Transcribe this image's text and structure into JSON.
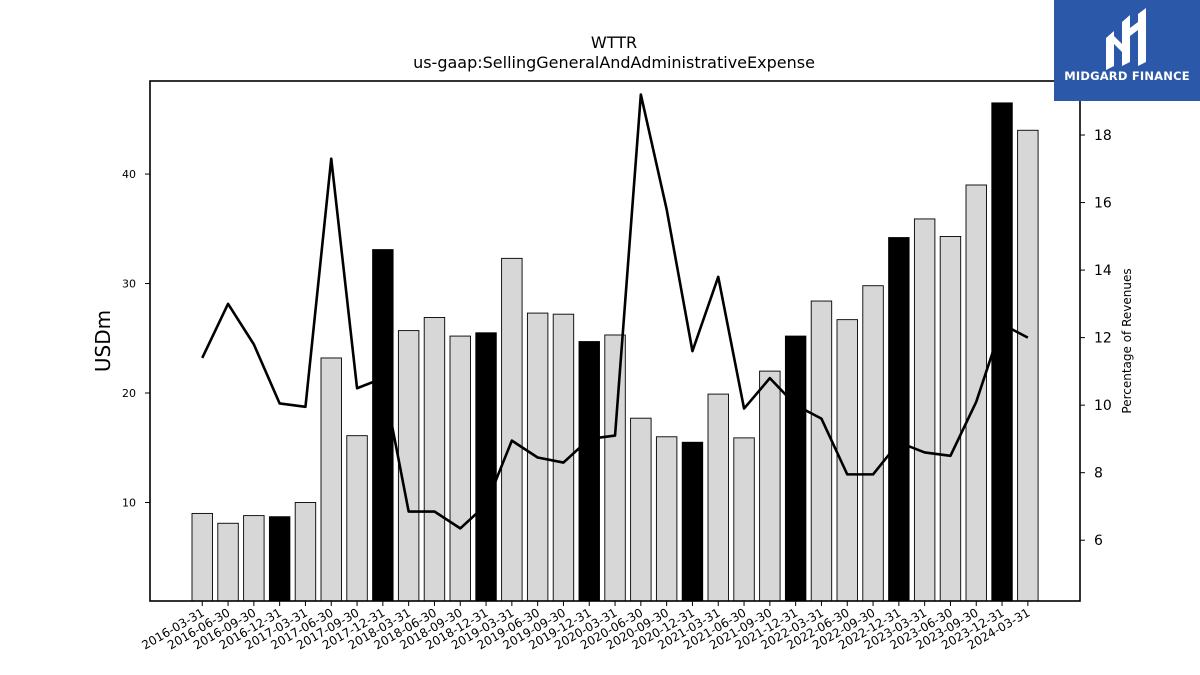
{
  "brand": {
    "name": "MIDGARD FINANCE",
    "bg_color": "#2b58a8",
    "icon": "midgard-logo-icon"
  },
  "chart_data": {
    "type": "bar+line",
    "title": "WTTR",
    "subtitle": "us-gaap:SellingGeneralAndAdministrativeExpense",
    "ylabel": "USDm",
    "y2label": "Percentage of Revenues",
    "ylim": [
      1,
      48.5
    ],
    "y2lim": [
      4.2,
      19.6
    ],
    "yticks": [
      10,
      20,
      30,
      40
    ],
    "y2ticks": [
      6,
      8,
      10,
      12,
      14,
      16,
      18
    ],
    "categories": [
      "2016-03-31",
      "2016-06-30",
      "2016-09-30",
      "2016-12-31",
      "2017-03-31",
      "2017-06-30",
      "2017-09-30",
      "2017-12-31",
      "2018-03-31",
      "2018-06-30",
      "2018-09-30",
      "2018-12-31",
      "2019-03-31",
      "2019-06-30",
      "2019-09-30",
      "2019-12-31",
      "2020-03-31",
      "2020-06-30",
      "2020-09-30",
      "2020-12-31",
      "2021-03-31",
      "2021-06-30",
      "2021-09-30",
      "2021-12-31",
      "2022-03-31",
      "2022-06-30",
      "2022-09-30",
      "2022-12-31",
      "2023-03-31",
      "2023-06-30",
      "2023-09-30",
      "2023-12-31",
      "2024-03-31"
    ],
    "series": [
      {
        "kind": "bar",
        "values": [
          9.0,
          8.1,
          8.8,
          8.7,
          10.0,
          23.2,
          16.1,
          33.1,
          25.7,
          26.9,
          25.2,
          25.5,
          32.3,
          27.3,
          27.2,
          24.7,
          25.3,
          17.7,
          16.0,
          15.5,
          19.9,
          15.9,
          22.0,
          25.2,
          28.4,
          26.7,
          29.8,
          34.2,
          35.9,
          34.3,
          39.0,
          46.5,
          44.0
        ],
        "highlight": [
          false,
          false,
          false,
          true,
          false,
          false,
          false,
          true,
          false,
          false,
          false,
          true,
          false,
          false,
          false,
          true,
          false,
          false,
          false,
          true,
          false,
          false,
          false,
          true,
          false,
          false,
          false,
          true,
          false,
          false,
          false,
          true,
          false
        ],
        "fill_color": "#d7d7d7",
        "highlight_color": "#000000"
      },
      {
        "kind": "line",
        "axis": "right",
        "values": [
          11.4,
          13.0,
          11.8,
          10.05,
          9.95,
          17.3,
          10.5,
          10.8,
          6.85,
          6.85,
          6.35,
          7.05,
          8.95,
          8.45,
          8.3,
          9.0,
          9.1,
          19.2,
          15.8,
          11.6,
          13.8,
          9.9,
          10.8,
          10.0,
          9.6,
          7.95,
          7.95,
          8.9,
          8.6,
          8.5,
          10.1,
          12.4,
          12.0
        ],
        "color": "#000000"
      }
    ],
    "grid": false,
    "legend": "none"
  }
}
